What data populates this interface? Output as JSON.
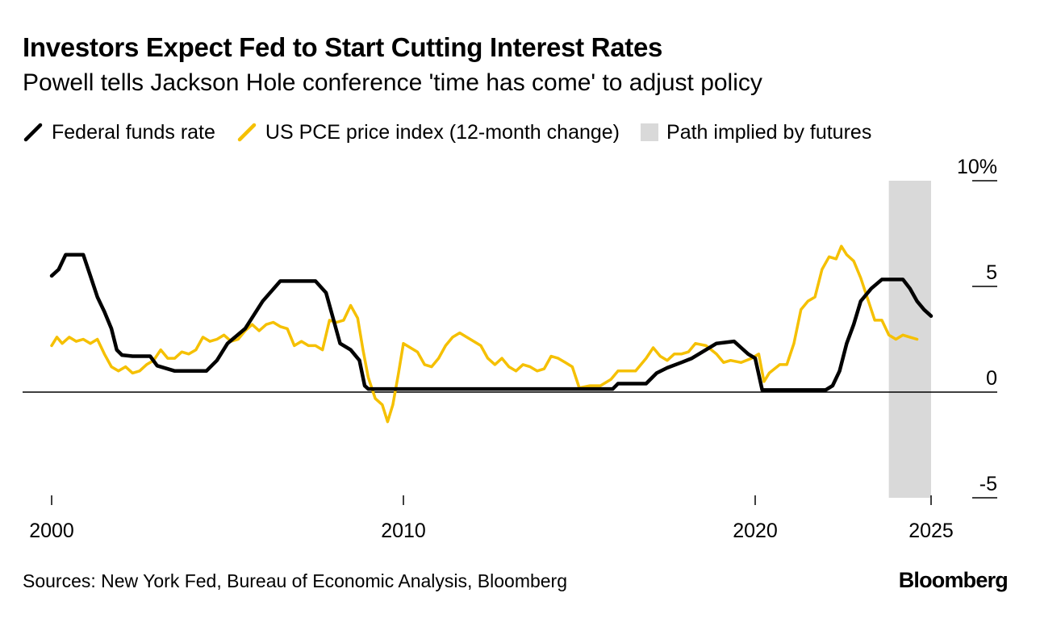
{
  "chart_data": {
    "type": "line",
    "title": "Investors Expect Fed to Start Cutting Interest Rates",
    "subtitle": "Powell tells Jackson Hole conference 'time has come' to adjust policy",
    "legend": [
      {
        "label": "Federal funds rate",
        "color": "#000000",
        "kind": "line"
      },
      {
        "label": "US PCE price index (12-month change)",
        "color": "#f5c000",
        "kind": "line"
      },
      {
        "label": "Path implied by futures",
        "color": "#d9d9d9",
        "kind": "area"
      }
    ],
    "x_range": [
      2000,
      2025.4
    ],
    "ylim": [
      -5,
      10
    ],
    "y_ticks": [
      {
        "value": 10,
        "label": "10%"
      },
      {
        "value": 5,
        "label": "5"
      },
      {
        "value": 0,
        "label": "0"
      },
      {
        "value": -5,
        "label": "-5"
      }
    ],
    "x_ticks": [
      {
        "value": 2000,
        "label": "2000"
      },
      {
        "value": 2010,
        "label": "2010"
      },
      {
        "value": 2020,
        "label": "2020"
      },
      {
        "value": 2025,
        "label": "2025"
      }
    ],
    "shaded_region": {
      "label": "Path implied by futures",
      "x_start": 2023.8,
      "x_end": 2025.0
    },
    "series": [
      {
        "name": "Federal funds rate",
        "color": "#000000",
        "points": [
          [
            2000.0,
            5.5
          ],
          [
            2000.2,
            5.8
          ],
          [
            2000.4,
            6.5
          ],
          [
            2000.9,
            6.5
          ],
          [
            2001.1,
            5.5
          ],
          [
            2001.3,
            4.5
          ],
          [
            2001.5,
            3.8
          ],
          [
            2001.7,
            3.0
          ],
          [
            2001.85,
            2.0
          ],
          [
            2002.0,
            1.75
          ],
          [
            2002.3,
            1.7
          ],
          [
            2002.8,
            1.7
          ],
          [
            2003.0,
            1.25
          ],
          [
            2003.5,
            1.0
          ],
          [
            2004.0,
            1.0
          ],
          [
            2004.4,
            1.0
          ],
          [
            2004.7,
            1.5
          ],
          [
            2005.0,
            2.3
          ],
          [
            2005.5,
            3.0
          ],
          [
            2006.0,
            4.3
          ],
          [
            2006.5,
            5.25
          ],
          [
            2007.0,
            5.25
          ],
          [
            2007.5,
            5.25
          ],
          [
            2007.8,
            4.7
          ],
          [
            2008.0,
            3.5
          ],
          [
            2008.2,
            2.3
          ],
          [
            2008.5,
            2.0
          ],
          [
            2008.75,
            1.5
          ],
          [
            2008.9,
            0.3
          ],
          [
            2009.0,
            0.15
          ],
          [
            2010.0,
            0.15
          ],
          [
            2012.0,
            0.15
          ],
          [
            2015.0,
            0.15
          ],
          [
            2015.95,
            0.15
          ],
          [
            2016.1,
            0.4
          ],
          [
            2016.9,
            0.4
          ],
          [
            2017.2,
            0.9
          ],
          [
            2017.5,
            1.15
          ],
          [
            2017.9,
            1.4
          ],
          [
            2018.2,
            1.6
          ],
          [
            2018.5,
            1.9
          ],
          [
            2018.9,
            2.3
          ],
          [
            2019.4,
            2.4
          ],
          [
            2019.6,
            2.1
          ],
          [
            2019.8,
            1.8
          ],
          [
            2020.0,
            1.6
          ],
          [
            2020.2,
            0.1
          ],
          [
            2021.0,
            0.1
          ],
          [
            2022.0,
            0.1
          ],
          [
            2022.2,
            0.3
          ],
          [
            2022.4,
            1.0
          ],
          [
            2022.6,
            2.3
          ],
          [
            2022.8,
            3.2
          ],
          [
            2023.0,
            4.3
          ],
          [
            2023.3,
            4.9
          ],
          [
            2023.6,
            5.33
          ],
          [
            2024.0,
            5.33
          ],
          [
            2024.2,
            5.33
          ],
          [
            2024.4,
            4.9
          ],
          [
            2024.6,
            4.3
          ],
          [
            2024.8,
            3.9
          ],
          [
            2025.0,
            3.6
          ]
        ]
      },
      {
        "name": "US PCE price index (12-month change)",
        "color": "#f5c000",
        "points": [
          [
            2000.0,
            2.2
          ],
          [
            2000.15,
            2.6
          ],
          [
            2000.3,
            2.3
          ],
          [
            2000.5,
            2.6
          ],
          [
            2000.7,
            2.4
          ],
          [
            2000.9,
            2.5
          ],
          [
            2001.1,
            2.3
          ],
          [
            2001.3,
            2.5
          ],
          [
            2001.5,
            1.8
          ],
          [
            2001.7,
            1.2
          ],
          [
            2001.9,
            1.0
          ],
          [
            2002.1,
            1.2
          ],
          [
            2002.3,
            0.9
          ],
          [
            2002.5,
            1.0
          ],
          [
            2002.7,
            1.3
          ],
          [
            2002.9,
            1.5
          ],
          [
            2003.1,
            2.0
          ],
          [
            2003.3,
            1.6
          ],
          [
            2003.5,
            1.6
          ],
          [
            2003.7,
            1.9
          ],
          [
            2003.9,
            1.8
          ],
          [
            2004.1,
            2.0
          ],
          [
            2004.3,
            2.6
          ],
          [
            2004.5,
            2.4
          ],
          [
            2004.7,
            2.5
          ],
          [
            2004.9,
            2.7
          ],
          [
            2005.1,
            2.4
          ],
          [
            2005.3,
            2.5
          ],
          [
            2005.5,
            2.9
          ],
          [
            2005.7,
            3.2
          ],
          [
            2005.9,
            2.9
          ],
          [
            2006.1,
            3.2
          ],
          [
            2006.3,
            3.3
          ],
          [
            2006.5,
            3.1
          ],
          [
            2006.7,
            3.0
          ],
          [
            2006.9,
            2.2
          ],
          [
            2007.1,
            2.4
          ],
          [
            2007.3,
            2.2
          ],
          [
            2007.5,
            2.2
          ],
          [
            2007.7,
            2.0
          ],
          [
            2007.9,
            3.4
          ],
          [
            2008.1,
            3.3
          ],
          [
            2008.3,
            3.4
          ],
          [
            2008.5,
            4.1
          ],
          [
            2008.7,
            3.5
          ],
          [
            2008.85,
            2.0
          ],
          [
            2009.0,
            0.7
          ],
          [
            2009.2,
            -0.3
          ],
          [
            2009.4,
            -0.6
          ],
          [
            2009.55,
            -1.4
          ],
          [
            2009.7,
            -0.6
          ],
          [
            2009.85,
            0.8
          ],
          [
            2010.0,
            2.3
          ],
          [
            2010.2,
            2.1
          ],
          [
            2010.4,
            1.9
          ],
          [
            2010.6,
            1.3
          ],
          [
            2010.8,
            1.2
          ],
          [
            2011.0,
            1.6
          ],
          [
            2011.2,
            2.2
          ],
          [
            2011.4,
            2.6
          ],
          [
            2011.6,
            2.8
          ],
          [
            2011.8,
            2.6
          ],
          [
            2012.0,
            2.4
          ],
          [
            2012.2,
            2.2
          ],
          [
            2012.4,
            1.6
          ],
          [
            2012.6,
            1.3
          ],
          [
            2012.8,
            1.6
          ],
          [
            2013.0,
            1.2
          ],
          [
            2013.2,
            1.0
          ],
          [
            2013.4,
            1.3
          ],
          [
            2013.6,
            1.2
          ],
          [
            2013.8,
            1.0
          ],
          [
            2014.0,
            1.1
          ],
          [
            2014.2,
            1.7
          ],
          [
            2014.4,
            1.6
          ],
          [
            2014.6,
            1.4
          ],
          [
            2014.8,
            1.2
          ],
          [
            2015.0,
            0.2
          ],
          [
            2015.3,
            0.3
          ],
          [
            2015.6,
            0.3
          ],
          [
            2015.9,
            0.6
          ],
          [
            2016.1,
            1.0
          ],
          [
            2016.3,
            1.0
          ],
          [
            2016.6,
            1.0
          ],
          [
            2016.9,
            1.6
          ],
          [
            2017.1,
            2.1
          ],
          [
            2017.3,
            1.7
          ],
          [
            2017.5,
            1.5
          ],
          [
            2017.7,
            1.8
          ],
          [
            2017.9,
            1.8
          ],
          [
            2018.1,
            1.9
          ],
          [
            2018.3,
            2.3
          ],
          [
            2018.6,
            2.2
          ],
          [
            2018.9,
            1.8
          ],
          [
            2019.1,
            1.4
          ],
          [
            2019.3,
            1.5
          ],
          [
            2019.6,
            1.4
          ],
          [
            2019.9,
            1.6
          ],
          [
            2020.1,
            1.8
          ],
          [
            2020.25,
            0.5
          ],
          [
            2020.4,
            0.9
          ],
          [
            2020.7,
            1.3
          ],
          [
            2020.9,
            1.3
          ],
          [
            2021.1,
            2.3
          ],
          [
            2021.3,
            3.9
          ],
          [
            2021.5,
            4.3
          ],
          [
            2021.7,
            4.5
          ],
          [
            2021.9,
            5.8
          ],
          [
            2022.1,
            6.4
          ],
          [
            2022.3,
            6.3
          ],
          [
            2022.45,
            6.9
          ],
          [
            2022.6,
            6.5
          ],
          [
            2022.8,
            6.2
          ],
          [
            2023.0,
            5.4
          ],
          [
            2023.2,
            4.4
          ],
          [
            2023.4,
            3.4
          ],
          [
            2023.6,
            3.4
          ],
          [
            2023.8,
            2.7
          ],
          [
            2024.0,
            2.5
          ],
          [
            2024.2,
            2.7
          ],
          [
            2024.4,
            2.6
          ],
          [
            2024.6,
            2.5
          ]
        ]
      }
    ]
  },
  "footer": {
    "source": "Sources: New York Fed, Bureau of Economic Analysis, Bloomberg",
    "logo": "Bloomberg"
  }
}
